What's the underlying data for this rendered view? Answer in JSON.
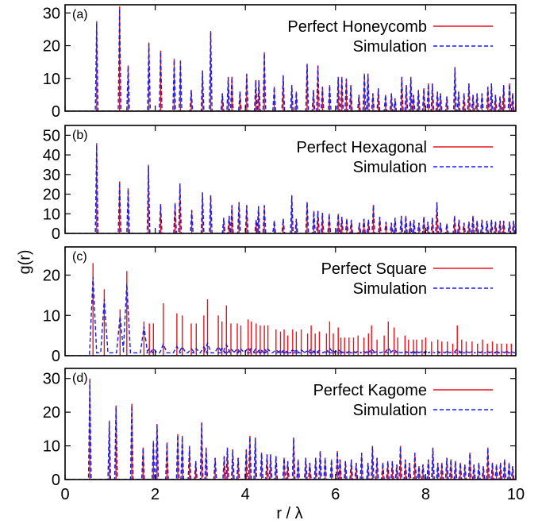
{
  "colors": {
    "perfect": "#e8141c",
    "simulation": "#1c1ce0"
  },
  "figure": {
    "xlabel": "r / λ",
    "ylabel": "g(r)"
  },
  "chart_data": [
    {
      "type": "line",
      "panel_label": "(a)",
      "xlim": [
        0,
        10
      ],
      "ylim": [
        0,
        32.5
      ],
      "x_ticks": [
        0,
        2,
        4,
        6,
        8,
        10
      ],
      "y_ticks": [
        0,
        10,
        20,
        30
      ],
      "legend_position": "top-right",
      "series": [
        {
          "name": "Perfect Honeycomb",
          "style": "solid",
          "color": "perfect"
        },
        {
          "name": "Simulation",
          "style": "dashed",
          "color": "simulation"
        }
      ],
      "peaks": [
        [
          0.7,
          27.5
        ],
        [
          1.21,
          32.0
        ],
        [
          1.4,
          14.0
        ],
        [
          1.86,
          21.0
        ],
        [
          2.12,
          18.5
        ],
        [
          2.42,
          16.0
        ],
        [
          2.56,
          15.5
        ],
        [
          2.8,
          6.5
        ],
        [
          3.05,
          12.5
        ],
        [
          3.23,
          24.5
        ],
        [
          3.49,
          5.5
        ],
        [
          3.62,
          10.5
        ],
        [
          3.7,
          10.5
        ],
        [
          3.88,
          6.0
        ],
        [
          4.03,
          11.5
        ],
        [
          4.23,
          9.5
        ],
        [
          4.3,
          9.5
        ],
        [
          4.42,
          18.0
        ],
        [
          4.64,
          7.5
        ],
        [
          4.84,
          11.0
        ],
        [
          5.03,
          8.0
        ],
        [
          5.13,
          6.0
        ],
        [
          5.37,
          14.5
        ],
        [
          5.51,
          6.5
        ],
        [
          5.61,
          14.0
        ],
        [
          5.71,
          7.5
        ],
        [
          5.87,
          8.0
        ],
        [
          6.06,
          10.5
        ],
        [
          6.14,
          10.5
        ],
        [
          6.24,
          10.0
        ],
        [
          6.34,
          8.0
        ],
        [
          6.52,
          5.0
        ],
        [
          6.64,
          11.5
        ],
        [
          6.72,
          11.5
        ],
        [
          6.83,
          5.5
        ],
        [
          6.95,
          7.0
        ],
        [
          7.11,
          5.0
        ],
        [
          7.24,
          5.5
        ],
        [
          7.32,
          4.0
        ],
        [
          7.47,
          10.5
        ],
        [
          7.57,
          8.0
        ],
        [
          7.67,
          10.5
        ],
        [
          7.73,
          5.0
        ],
        [
          7.84,
          6.5
        ],
        [
          7.96,
          7.0
        ],
        [
          8.06,
          8.5
        ],
        [
          8.15,
          8.5
        ],
        [
          8.26,
          6.0
        ],
        [
          8.33,
          5.5
        ],
        [
          8.47,
          4.5
        ],
        [
          8.65,
          13.5
        ],
        [
          8.73,
          6.0
        ],
        [
          8.85,
          5.5
        ],
        [
          8.96,
          8.5
        ],
        [
          9.05,
          5.0
        ],
        [
          9.14,
          5.5
        ],
        [
          9.25,
          5.5
        ],
        [
          9.38,
          7.5
        ],
        [
          9.46,
          8.5
        ],
        [
          9.55,
          5.0
        ],
        [
          9.65,
          4.5
        ],
        [
          9.73,
          8.0
        ],
        [
          9.86,
          8.5
        ],
        [
          9.93,
          5.5
        ]
      ]
    },
    {
      "type": "line",
      "panel_label": "(b)",
      "xlim": [
        0,
        10
      ],
      "ylim": [
        0,
        55
      ],
      "x_ticks": [
        0,
        2,
        4,
        6,
        8,
        10
      ],
      "y_ticks": [
        0,
        10,
        20,
        30,
        40,
        50
      ],
      "legend_position": "top-right",
      "series": [
        {
          "name": "Perfect Hexagonal",
          "style": "solid",
          "color": "perfect"
        },
        {
          "name": "Simulation",
          "style": "dashed",
          "color": "simulation"
        }
      ],
      "peaks": [
        [
          0.7,
          46.0
        ],
        [
          1.21,
          26.5
        ],
        [
          1.4,
          23.0
        ],
        [
          1.85,
          35.0
        ],
        [
          2.12,
          15.0
        ],
        [
          2.44,
          15.5
        ],
        [
          2.55,
          25.5
        ],
        [
          2.81,
          12.0
        ],
        [
          3.05,
          21.0
        ],
        [
          3.23,
          19.5
        ],
        [
          3.52,
          8.0
        ],
        [
          3.64,
          9.0
        ],
        [
          3.7,
          14.5
        ],
        [
          3.86,
          16.0
        ],
        [
          4.03,
          14.5
        ],
        [
          4.24,
          7.0
        ],
        [
          4.29,
          14.0
        ],
        [
          4.42,
          14.5
        ],
        [
          4.64,
          6.5
        ],
        [
          4.84,
          7.5
        ],
        [
          5.03,
          19.5
        ],
        [
          5.13,
          7.5
        ],
        [
          5.37,
          16.0
        ],
        [
          5.52,
          11.5
        ],
        [
          5.61,
          11.5
        ],
        [
          5.71,
          10.5
        ],
        [
          5.86,
          10.0
        ],
        [
          6.06,
          10.0
        ],
        [
          6.14,
          8.5
        ],
        [
          6.25,
          7.5
        ],
        [
          6.35,
          7.0
        ],
        [
          6.53,
          5.5
        ],
        [
          6.63,
          7.5
        ],
        [
          6.73,
          7.0
        ],
        [
          6.84,
          14.5
        ],
        [
          6.98,
          8.5
        ],
        [
          7.12,
          6.0
        ],
        [
          7.24,
          5.5
        ],
        [
          7.32,
          8.0
        ],
        [
          7.46,
          9.0
        ],
        [
          7.56,
          9.0
        ],
        [
          7.66,
          6.5
        ],
        [
          7.74,
          7.0
        ],
        [
          7.85,
          5.5
        ],
        [
          7.96,
          8.5
        ],
        [
          8.05,
          6.0
        ],
        [
          8.15,
          8.0
        ],
        [
          8.25,
          16.0
        ],
        [
          8.33,
          5.5
        ],
        [
          8.47,
          5.0
        ],
        [
          8.64,
          9.0
        ],
        [
          8.74,
          7.0
        ],
        [
          8.85,
          5.5
        ],
        [
          8.96,
          6.0
        ],
        [
          9.05,
          9.0
        ],
        [
          9.14,
          6.5
        ],
        [
          9.25,
          7.0
        ],
        [
          9.36,
          6.5
        ],
        [
          9.46,
          7.0
        ],
        [
          9.55,
          6.0
        ],
        [
          9.65,
          6.5
        ],
        [
          9.73,
          6.5
        ],
        [
          9.86,
          6.0
        ],
        [
          9.95,
          6.5
        ]
      ]
    },
    {
      "type": "line",
      "panel_label": "(c)",
      "xlim": [
        0,
        10
      ],
      "ylim": [
        0,
        27
      ],
      "x_ticks": [
        0,
        2,
        4,
        6,
        8,
        10
      ],
      "y_ticks": [
        0,
        10,
        20
      ],
      "legend_position": "top-right",
      "series": [
        {
          "name": "Perfect Square",
          "style": "solid",
          "color": "perfect"
        },
        {
          "name": "Simulation",
          "style": "dashed",
          "color": "simulation"
        }
      ],
      "peaks": [
        [
          0.62,
          23.0
        ],
        [
          0.87,
          16.5
        ],
        [
          1.22,
          11.5
        ],
        [
          1.37,
          21.0
        ],
        [
          1.75,
          8.5
        ],
        [
          1.87,
          8.0
        ],
        [
          1.96,
          8.0
        ],
        [
          2.18,
          13.0
        ],
        [
          2.48,
          10.5
        ],
        [
          2.6,
          10.0
        ],
        [
          2.8,
          8.0
        ],
        [
          2.91,
          8.0
        ],
        [
          3.08,
          10.0
        ],
        [
          3.16,
          14.0
        ],
        [
          3.4,
          10.0
        ],
        [
          3.48,
          8.5
        ],
        [
          3.58,
          12.5
        ],
        [
          3.68,
          8.0
        ],
        [
          3.82,
          8.0
        ],
        [
          3.9,
          7.5
        ],
        [
          4.06,
          9.0
        ],
        [
          4.13,
          8.5
        ],
        [
          4.24,
          8.0
        ],
        [
          4.33,
          7.5
        ],
        [
          4.42,
          7.5
        ],
        [
          4.5,
          7.5
        ],
        [
          4.68,
          6.5
        ],
        [
          4.78,
          6.0
        ],
        [
          4.86,
          6.5
        ],
        [
          4.94,
          5.0
        ],
        [
          5.05,
          6.5
        ],
        [
          5.13,
          6.0
        ],
        [
          5.24,
          6.5
        ],
        [
          5.38,
          5.5
        ],
        [
          5.46,
          7.5
        ],
        [
          5.55,
          5.5
        ],
        [
          5.64,
          6.0
        ],
        [
          5.8,
          5.5
        ],
        [
          5.87,
          8.5
        ],
        [
          5.95,
          5.5
        ],
        [
          6.06,
          7.0
        ],
        [
          6.12,
          4.5
        ],
        [
          6.2,
          4.5
        ],
        [
          6.3,
          4.5
        ],
        [
          6.4,
          4.5
        ],
        [
          6.5,
          5.0
        ],
        [
          6.63,
          4.5
        ],
        [
          6.73,
          5.5
        ],
        [
          6.8,
          7.5
        ],
        [
          6.92,
          4.0
        ],
        [
          7.08,
          5.0
        ],
        [
          7.17,
          8.5
        ],
        [
          7.3,
          7.0
        ],
        [
          7.38,
          4.5
        ],
        [
          7.54,
          5.0
        ],
        [
          7.62,
          4.0
        ],
        [
          7.73,
          4.0
        ],
        [
          7.8,
          4.0
        ],
        [
          7.92,
          4.0
        ],
        [
          8.0,
          4.5
        ],
        [
          8.13,
          3.5
        ],
        [
          8.27,
          4.0
        ],
        [
          8.36,
          3.5
        ],
        [
          8.48,
          3.5
        ],
        [
          8.6,
          3.0
        ],
        [
          8.7,
          7.5
        ],
        [
          8.8,
          4.0
        ],
        [
          8.9,
          3.5
        ],
        [
          9.03,
          3.5
        ],
        [
          9.15,
          3.0
        ],
        [
          9.26,
          4.0
        ],
        [
          9.37,
          3.0
        ],
        [
          9.48,
          3.5
        ],
        [
          9.58,
          3.0
        ],
        [
          9.68,
          3.0
        ],
        [
          9.8,
          3.0
        ],
        [
          9.9,
          3.0
        ]
      ]
    },
    {
      "type": "line",
      "panel_label": "(d)",
      "xlim": [
        0,
        10
      ],
      "ylim": [
        0,
        33
      ],
      "x_ticks": [
        0,
        2,
        4,
        6,
        8,
        10
      ],
      "y_ticks": [
        0,
        10,
        20,
        30
      ],
      "legend_position": "top-right",
      "series": [
        {
          "name": "Perfect Kagome",
          "style": "solid",
          "color": "perfect"
        },
        {
          "name": "Simulation",
          "style": "dashed",
          "color": "simulation"
        }
      ],
      "peaks": [
        [
          0.55,
          30.0
        ],
        [
          0.98,
          17.5
        ],
        [
          1.13,
          22.0
        ],
        [
          1.48,
          22.5
        ],
        [
          1.73,
          9.5
        ],
        [
          1.96,
          11.5
        ],
        [
          2.04,
          16.5
        ],
        [
          2.26,
          11.0
        ],
        [
          2.5,
          13.5
        ],
        [
          2.6,
          13.0
        ],
        [
          2.76,
          10.0
        ],
        [
          2.9,
          5.5
        ],
        [
          3.03,
          17.0
        ],
        [
          3.13,
          9.5
        ],
        [
          3.33,
          6.5
        ],
        [
          3.53,
          7.0
        ],
        [
          3.6,
          9.5
        ],
        [
          3.72,
          9.0
        ],
        [
          3.84,
          6.5
        ],
        [
          4.02,
          9.0
        ],
        [
          4.1,
          13.0
        ],
        [
          4.22,
          12.5
        ],
        [
          4.36,
          8.0
        ],
        [
          4.48,
          7.5
        ],
        [
          4.56,
          7.5
        ],
        [
          4.68,
          7.0
        ],
        [
          4.86,
          6.5
        ],
        [
          4.94,
          5.5
        ],
        [
          5.07,
          12.5
        ],
        [
          5.17,
          6.0
        ],
        [
          5.34,
          6.5
        ],
        [
          5.43,
          5.0
        ],
        [
          5.56,
          6.5
        ],
        [
          5.66,
          8.5
        ],
        [
          5.77,
          6.5
        ],
        [
          5.91,
          6.0
        ],
        [
          6.04,
          8.5
        ],
        [
          6.1,
          6.0
        ],
        [
          6.22,
          5.5
        ],
        [
          6.35,
          6.0
        ],
        [
          6.46,
          5.0
        ],
        [
          6.58,
          8.0
        ],
        [
          6.72,
          5.0
        ],
        [
          6.82,
          10.0
        ],
        [
          6.92,
          6.5
        ],
        [
          7.05,
          5.0
        ],
        [
          7.16,
          5.5
        ],
        [
          7.26,
          5.5
        ],
        [
          7.36,
          4.5
        ],
        [
          7.44,
          10.0
        ],
        [
          7.55,
          6.0
        ],
        [
          7.64,
          5.0
        ],
        [
          7.76,
          8.0
        ],
        [
          7.85,
          4.0
        ],
        [
          7.94,
          4.5
        ],
        [
          8.06,
          6.0
        ],
        [
          8.16,
          9.5
        ],
        [
          8.27,
          5.0
        ],
        [
          8.36,
          5.0
        ],
        [
          8.47,
          6.5
        ],
        [
          8.56,
          6.0
        ],
        [
          8.66,
          5.5
        ],
        [
          8.77,
          5.0
        ],
        [
          8.87,
          4.5
        ],
        [
          8.98,
          8.0
        ],
        [
          9.07,
          4.5
        ],
        [
          9.18,
          5.0
        ],
        [
          9.28,
          4.0
        ],
        [
          9.38,
          9.5
        ],
        [
          9.48,
          5.0
        ],
        [
          9.57,
          4.5
        ],
        [
          9.66,
          5.0
        ],
        [
          9.75,
          6.0
        ],
        [
          9.85,
          5.0
        ],
        [
          9.93,
          4.0
        ]
      ]
    }
  ]
}
